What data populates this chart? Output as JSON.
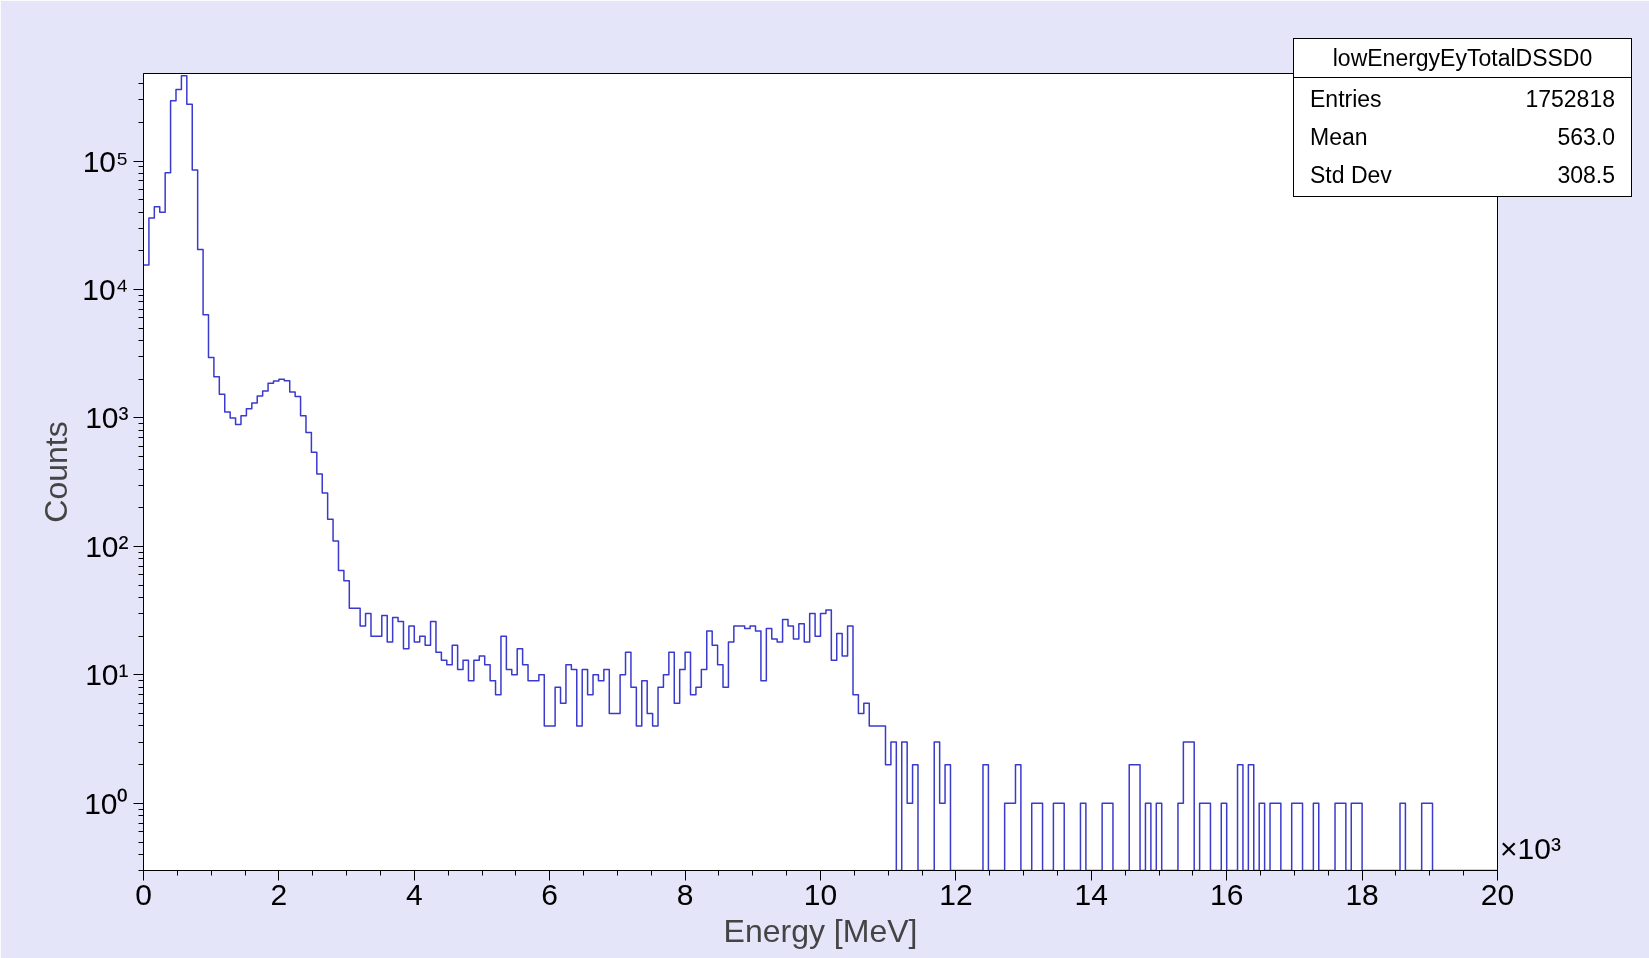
{
  "chart_data": {
    "type": "histogram",
    "xlabel": "Energy [MeV]",
    "ylabel": "Counts",
    "annotations": [
      "lowEnergyEyTotalDSSD0",
      "Entries",
      "1752818",
      "Mean",
      "563.0",
      "Std Dev",
      "308.5",
      "×10³"
    ],
    "color": "#3a3acc",
    "log": "y",
    "grid": false,
    "legend": false,
    "line_style": "solid",
    "xlim": [
      0,
      20
    ],
    "xticks": [
      0,
      2,
      4,
      6,
      8,
      10,
      12,
      14,
      16,
      18,
      20
    ],
    "ylim": [
      0.3,
      480000
    ],
    "yticks": [
      {
        "value": 1,
        "label": "10⁰"
      },
      {
        "value": 10,
        "label": "10¹"
      },
      {
        "value": 100,
        "label": "10²"
      },
      {
        "value": 1000,
        "label": "10³"
      },
      {
        "value": 10000,
        "label": "10⁴"
      },
      {
        "value": 100000,
        "label": "10⁵"
      }
    ],
    "bins": [
      0,
      0.08,
      0.16,
      0.24,
      0.32,
      0.4,
      0.48,
      0.56,
      0.64,
      0.72,
      0.8,
      0.88,
      0.96,
      1.04,
      1.12,
      1.2,
      1.28,
      1.36,
      1.44,
      1.52,
      1.6,
      1.68,
      1.76,
      1.84,
      1.92,
      2,
      2.08,
      2.16,
      2.24,
      2.32,
      2.4,
      2.48,
      2.56,
      2.64,
      2.72,
      2.8,
      2.88,
      2.96,
      3.04,
      3.12,
      3.2,
      3.28,
      3.36,
      3.44,
      3.52,
      3.6,
      3.68,
      3.76,
      3.84,
      3.92,
      4,
      4.08,
      4.16,
      4.24,
      4.32,
      4.4,
      4.48,
      4.56,
      4.64,
      4.72,
      4.8,
      4.88,
      4.96,
      5.04,
      5.12,
      5.2,
      5.28,
      5.36,
      5.44,
      5.52,
      5.6,
      5.68,
      5.76,
      5.84,
      5.92,
      6,
      6.08,
      6.16,
      6.24,
      6.32,
      6.4,
      6.48,
      6.56,
      6.64,
      6.72,
      6.8,
      6.88,
      6.96,
      7.04,
      7.12,
      7.2,
      7.28,
      7.36,
      7.44,
      7.52,
      7.6,
      7.68,
      7.76,
      7.84,
      7.92,
      8,
      8.08,
      8.16,
      8.24,
      8.32,
      8.4,
      8.48,
      8.56,
      8.64,
      8.72,
      8.8,
      8.88,
      8.96,
      9.04,
      9.12,
      9.2,
      9.28,
      9.36,
      9.44,
      9.52,
      9.6,
      9.68,
      9.76,
      9.84,
      9.92,
      10,
      10.08,
      10.16,
      10.24,
      10.32,
      10.4,
      10.48,
      10.56,
      10.64,
      10.72,
      10.8,
      10.88,
      10.96,
      11.04,
      11.12,
      11.2,
      11.28,
      11.36,
      11.44,
      11.52,
      11.6,
      11.68,
      11.76,
      11.84,
      11.92,
      12,
      12.08,
      12.16,
      12.24,
      12.32,
      12.4,
      12.48,
      12.56,
      12.64,
      12.72,
      12.8,
      12.88,
      12.96,
      13.04,
      13.12,
      13.2,
      13.28,
      13.36,
      13.44,
      13.52,
      13.6,
      13.68,
      13.76,
      13.84,
      13.92,
      14,
      14.08,
      14.16,
      14.24,
      14.32,
      14.4,
      14.48,
      14.56,
      14.64,
      14.72,
      14.8,
      14.88,
      14.96,
      15.04,
      15.12,
      15.2,
      15.28,
      15.36,
      15.44,
      15.52,
      15.6,
      15.68,
      15.76,
      15.84,
      15.92,
      16,
      16.08,
      16.16,
      16.24,
      16.32,
      16.4,
      16.48,
      16.56,
      16.64,
      16.72,
      16.8,
      16.88,
      16.96,
      17.04,
      17.12,
      17.2,
      17.28,
      17.36,
      17.44,
      17.52,
      17.6,
      17.68,
      17.76,
      17.84,
      17.92,
      18,
      18.08,
      18.16,
      18.24,
      18.32,
      18.4,
      18.48,
      18.56,
      18.64,
      18.72,
      18.8,
      18.88,
      18.96,
      19.04,
      19.12,
      19.2,
      19.28,
      19.36,
      19.44,
      19.52,
      19.6,
      19.68,
      19.76,
      19.84,
      19.92,
      20
    ],
    "values": [
      15500,
      36000,
      44000,
      40000,
      81000,
      294000,
      360000,
      460000,
      277000,
      85000,
      20500,
      6350,
      2950,
      2090,
      1530,
      1110,
      1000,
      890,
      1040,
      1180,
      1310,
      1480,
      1620,
      1860,
      1940,
      2000,
      1950,
      1590,
      1470,
      1040,
      770,
      540,
      366,
      260,
      163,
      110,
      65,
      54,
      33,
      33,
      24,
      30,
      20,
      20,
      29,
      18,
      28,
      26,
      16,
      24,
      18,
      20,
      17,
      26,
      15,
      13,
      12,
      17,
      11,
      13,
      9,
      13,
      14,
      12,
      9,
      7,
      20,
      11,
      10,
      16,
      12,
      9,
      9,
      10,
      4,
      4,
      8,
      6,
      12,
      11,
      4,
      11,
      7,
      10,
      9,
      11,
      5,
      5,
      10,
      15,
      8,
      4,
      9,
      5,
      4,
      8,
      10,
      15,
      6,
      11,
      15,
      7,
      8,
      11,
      22,
      17,
      12,
      8,
      18,
      24,
      24,
      23,
      24,
      22,
      9,
      23,
      19,
      18,
      27,
      24,
      19,
      25,
      18,
      30,
      20,
      30,
      32,
      13,
      21,
      14,
      24,
      7,
      5,
      6,
      4,
      4,
      4,
      2,
      3,
      null,
      3,
      1,
      2,
      null,
      null,
      null,
      3,
      1,
      2,
      null,
      null,
      null,
      null,
      null,
      null,
      2,
      null,
      null,
      null,
      1,
      1,
      2,
      null,
      null,
      1,
      1,
      null,
      null,
      1,
      1,
      null,
      null,
      null,
      1,
      null,
      null,
      null,
      1,
      1,
      null,
      null,
      null,
      2,
      2,
      null,
      1,
      null,
      1,
      null,
      null,
      null,
      1,
      3,
      3,
      null,
      1,
      1,
      null,
      null,
      1,
      null,
      null,
      2,
      null,
      2,
      null,
      1,
      null,
      1,
      1,
      null,
      null,
      1,
      1,
      null,
      null,
      1,
      null,
      null,
      null,
      1,
      1,
      null,
      1,
      1,
      null,
      null,
      null,
      null,
      null,
      null,
      null,
      1,
      null,
      null,
      null,
      1,
      1,
      null,
      null,
      null,
      null,
      null,
      null,
      null,
      null,
      null,
      null,
      null,
      null
    ]
  }
}
